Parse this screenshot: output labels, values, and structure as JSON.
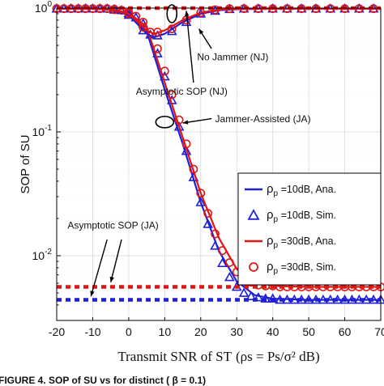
{
  "chart_data": {
    "type": "line",
    "xlabel": "Transmit SNR of ST",
    "xlabel_formula": "(ρs = Ps/σ² dB)",
    "ylabel": "SOP of SU",
    "xlim": [
      -20,
      70
    ],
    "ylim": [
      0.003,
      1.0
    ],
    "yscale": "log",
    "grid": true,
    "x_ticks": [
      "-20",
      "-10",
      "0",
      "10",
      "20",
      "30",
      "40",
      "50",
      "60",
      "70"
    ],
    "y_ticks": [
      {
        "value": 1,
        "base": "10",
        "exp": "0"
      },
      {
        "value": 0.1,
        "base": "10",
        "exp": "-1"
      },
      {
        "value": 0.01,
        "base": "10",
        "exp": "-2"
      }
    ],
    "colors": {
      "blue": "#1f1fd6",
      "red": "#e01515"
    },
    "legend": {
      "placement": "right",
      "entries": [
        {
          "symbol": "ρ",
          "sub": "p",
          "text": " =10dB, Ana.",
          "style": "line",
          "color": "#1f1fd6"
        },
        {
          "symbol": "ρ",
          "sub": "p",
          "text": " =10dB, Sim.",
          "style": "triangle",
          "color": "#1f1fd6"
        },
        {
          "symbol": "ρ",
          "sub": "p",
          "text": " =30dB, Ana.",
          "style": "line",
          "color": "#e01515"
        },
        {
          "symbol": "ρ",
          "sub": "p",
          "text": " =30dB, Sim.",
          "style": "circle",
          "color": "#e01515"
        }
      ]
    },
    "annotations": {
      "nj": "No Jammer (NJ)",
      "asym_nj": "Asymptotic SOP (NJ)",
      "ja": "Jammer-Assisted (JA)",
      "asym_ja": "Asymptotic SOP (JA)"
    },
    "series": [
      {
        "color": "#1f1fd6",
        "style": "line",
        "x": [
          -20,
          -10,
          -5,
          0,
          5,
          10,
          15,
          20,
          25,
          30,
          35,
          40,
          50,
          60,
          70
        ],
        "y": [
          0.99,
          0.99,
          0.97,
          0.91,
          0.65,
          0.22,
          0.08,
          0.027,
          0.011,
          0.0062,
          0.0048,
          0.0045,
          0.0044,
          0.0044,
          0.0044
        ]
      },
      {
        "color": "#1f1fd6",
        "style": "triangle",
        "x": [
          -20,
          -18,
          -16,
          -14,
          -12,
          -10,
          -8,
          -6,
          -4,
          -2,
          0,
          2,
          4,
          6,
          8,
          10,
          12,
          14,
          16,
          18,
          20,
          22,
          24,
          26,
          28,
          30,
          32,
          34,
          36,
          38,
          40,
          42,
          44,
          46,
          48,
          50,
          52,
          54,
          56,
          58,
          60,
          62,
          64,
          66,
          68,
          70
        ],
        "y": [
          0.99,
          0.99,
          0.99,
          0.99,
          0.99,
          0.99,
          0.99,
          0.99,
          0.98,
          0.96,
          0.91,
          0.84,
          0.75,
          0.61,
          0.43,
          0.28,
          0.18,
          0.11,
          0.07,
          0.043,
          0.027,
          0.018,
          0.012,
          0.0087,
          0.0067,
          0.0056,
          0.005,
          0.0047,
          0.0046,
          0.0045,
          0.0045,
          0.0044,
          0.0044,
          0.0044,
          0.0044,
          0.0044,
          0.0044,
          0.0044,
          0.0044,
          0.0044,
          0.0044,
          0.0044,
          0.0044,
          0.0044,
          0.0044,
          0.0044
        ]
      },
      {
        "color": "#e01515",
        "style": "line",
        "x": [
          -20,
          -10,
          -5,
          0,
          5,
          10,
          15,
          20,
          25,
          30,
          35,
          40,
          50,
          60,
          70
        ],
        "y": [
          0.99,
          0.99,
          0.97,
          0.92,
          0.7,
          0.25,
          0.09,
          0.032,
          0.014,
          0.0078,
          0.0062,
          0.0057,
          0.0056,
          0.0056,
          0.0056
        ]
      },
      {
        "color": "#e01515",
        "style": "circle",
        "x": [
          -20,
          -18,
          -16,
          -14,
          -12,
          -10,
          -8,
          -6,
          -4,
          -2,
          0,
          2,
          4,
          6,
          8,
          10,
          12,
          14,
          16,
          18,
          20,
          22,
          24,
          26,
          28,
          30,
          32,
          34,
          36,
          38,
          40,
          42,
          44,
          46,
          48,
          50,
          52,
          54,
          56,
          58,
          60,
          62,
          64,
          66,
          68,
          70
        ],
        "y": [
          0.99,
          0.99,
          0.99,
          0.99,
          0.99,
          0.99,
          0.99,
          0.99,
          0.98,
          0.96,
          0.92,
          0.86,
          0.77,
          0.64,
          0.47,
          0.31,
          0.2,
          0.125,
          0.08,
          0.05,
          0.032,
          0.022,
          0.015,
          0.011,
          0.0088,
          0.0074,
          0.0066,
          0.0061,
          0.0058,
          0.0057,
          0.0057,
          0.0056,
          0.0056,
          0.0056,
          0.0056,
          0.0056,
          0.0056,
          0.0056,
          0.0056,
          0.0056,
          0.0056,
          0.0056,
          0.0056,
          0.0056,
          0.0056,
          0.0056
        ]
      },
      {
        "color": "#1f1fd6",
        "style": "line",
        "x": [
          -20,
          -10,
          -5,
          0,
          5,
          7,
          10,
          15,
          20,
          25,
          30,
          40,
          50,
          60,
          70
        ],
        "y": [
          0.99,
          0.99,
          0.97,
          0.88,
          0.62,
          0.58,
          0.62,
          0.77,
          0.9,
          0.96,
          0.98,
          0.99,
          0.99,
          0.99,
          0.99
        ]
      },
      {
        "color": "#1f1fd6",
        "style": "triangle",
        "x": [
          -20,
          -16,
          -12,
          -8,
          -4,
          0,
          4,
          8,
          12,
          16,
          20,
          24,
          28,
          32,
          36,
          40,
          44,
          48,
          52,
          56,
          60,
          64,
          68
        ],
        "y": [
          0.99,
          0.99,
          0.99,
          0.99,
          0.97,
          0.88,
          0.66,
          0.6,
          0.65,
          0.77,
          0.9,
          0.95,
          0.98,
          0.99,
          0.99,
          0.99,
          0.99,
          0.99,
          0.99,
          0.99,
          0.99,
          0.99,
          0.99
        ]
      },
      {
        "color": "#e01515",
        "style": "line",
        "x": [
          -20,
          -10,
          -5,
          0,
          5,
          7,
          10,
          15,
          20,
          25,
          30,
          40,
          50,
          60,
          70
        ],
        "y": [
          0.99,
          0.99,
          0.97,
          0.9,
          0.66,
          0.62,
          0.66,
          0.8,
          0.92,
          0.97,
          0.99,
          0.99,
          0.99,
          0.99,
          0.99
        ]
      },
      {
        "color": "#e01515",
        "style": "circle",
        "x": [
          -20,
          -16,
          -12,
          -8,
          -4,
          0,
          4,
          8,
          12,
          16,
          20,
          24,
          28,
          32,
          36,
          40,
          44,
          48,
          52,
          56,
          60,
          64,
          68
        ],
        "y": [
          0.99,
          0.99,
          0.99,
          0.99,
          0.97,
          0.9,
          0.7,
          0.64,
          0.68,
          0.8,
          0.92,
          0.97,
          0.99,
          0.99,
          0.99,
          0.99,
          0.99,
          0.99,
          0.99,
          0.99,
          0.99,
          0.99,
          0.99
        ]
      },
      {
        "color": "#e01515",
        "style": "dashed-asymptote",
        "x": [
          -20,
          70
        ],
        "y": [
          1.0,
          1.0
        ]
      },
      {
        "color": "#1f1fd6",
        "style": "dashed-asymptote",
        "x": [
          -20,
          70
        ],
        "y": [
          0.0044,
          0.0044
        ]
      },
      {
        "color": "#e01515",
        "style": "dashed-asymptote",
        "x": [
          -20,
          70
        ],
        "y": [
          0.0056,
          0.0056
        ]
      }
    ]
  },
  "caption": {
    "text": "FIGURE 4.  SOP of SU vs    for distinct    ( β = 0.1)"
  }
}
